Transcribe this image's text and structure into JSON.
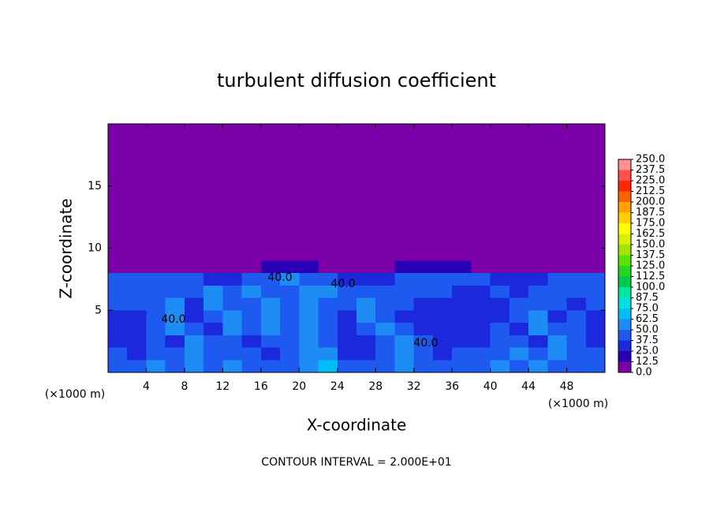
{
  "chart_data": {
    "type": "heatmap",
    "title": "turbulent diffusion coefficient",
    "x_label": "X-coordinate",
    "y_label": "Z-coordinate",
    "x_unit_label": "(×1000 m)",
    "footer": "CONTOUR INTERVAL = 2.000E+01",
    "contour_label": "40.0",
    "xlim": [
      0,
      52
    ],
    "ylim": [
      0,
      20
    ],
    "xticks": [
      4,
      8,
      12,
      16,
      20,
      24,
      28,
      32,
      36,
      40,
      44,
      48
    ],
    "yticks": [
      5,
      10,
      15
    ],
    "x_edges": [
      0,
      2,
      4,
      6,
      8,
      10,
      12,
      14,
      16,
      18,
      20,
      22,
      24,
      26,
      28,
      30,
      32,
      34,
      36,
      38,
      40,
      42,
      44,
      46,
      48,
      50,
      52
    ],
    "y_edges": [
      0,
      1,
      2,
      3,
      4,
      5,
      6,
      7,
      8,
      9,
      10,
      20
    ],
    "z": [
      [
        45,
        45,
        60,
        45,
        60,
        45,
        60,
        45,
        45,
        45,
        60,
        70,
        45,
        45,
        45,
        60,
        45,
        45,
        45,
        45,
        60,
        45,
        60,
        45,
        45,
        45
      ],
      [
        45,
        30,
        45,
        45,
        60,
        45,
        45,
        45,
        30,
        45,
        60,
        60,
        30,
        30,
        45,
        60,
        45,
        30,
        45,
        45,
        45,
        60,
        45,
        60,
        45,
        45
      ],
      [
        30,
        30,
        45,
        30,
        60,
        45,
        45,
        30,
        45,
        45,
        60,
        45,
        30,
        30,
        45,
        60,
        45,
        30,
        30,
        30,
        45,
        45,
        30,
        60,
        45,
        30
      ],
      [
        30,
        30,
        45,
        60,
        45,
        30,
        60,
        45,
        60,
        45,
        60,
        45,
        30,
        45,
        60,
        45,
        30,
        30,
        30,
        30,
        45,
        30,
        60,
        45,
        45,
        30
      ],
      [
        30,
        30,
        45,
        60,
        30,
        45,
        60,
        45,
        60,
        45,
        60,
        45,
        30,
        60,
        45,
        30,
        30,
        30,
        30,
        30,
        30,
        45,
        60,
        30,
        45,
        30
      ],
      [
        45,
        45,
        45,
        60,
        30,
        60,
        45,
        45,
        60,
        45,
        60,
        45,
        45,
        60,
        45,
        45,
        30,
        30,
        30,
        30,
        30,
        45,
        45,
        45,
        30,
        45
      ],
      [
        45,
        45,
        45,
        45,
        45,
        60,
        45,
        60,
        45,
        45,
        60,
        60,
        45,
        45,
        45,
        45,
        45,
        45,
        30,
        30,
        45,
        30,
        45,
        45,
        45,
        45
      ],
      [
        45,
        45,
        45,
        45,
        45,
        30,
        30,
        45,
        45,
        60,
        45,
        45,
        30,
        30,
        30,
        45,
        45,
        45,
        45,
        45,
        30,
        30,
        30,
        45,
        45,
        45
      ],
      [
        0,
        0,
        0,
        0,
        0,
        0,
        0,
        0,
        20,
        20,
        20,
        0,
        0,
        0,
        0,
        20,
        20,
        20,
        20,
        0,
        0,
        0,
        0,
        0,
        0,
        0
      ],
      [
        0,
        0,
        0,
        0,
        0,
        0,
        0,
        0,
        0,
        0,
        0,
        0,
        0,
        0,
        0,
        0,
        0,
        0,
        0,
        0,
        0,
        0,
        0,
        0,
        0,
        0
      ],
      [
        0,
        0,
        0,
        0,
        0,
        0,
        0,
        0,
        0,
        0,
        0,
        0,
        0,
        0,
        0,
        0,
        0,
        0,
        0,
        0,
        0,
        0,
        0,
        0,
        0,
        0
      ]
    ],
    "levels": [
      {
        "value": 0,
        "label": "0.0"
      },
      12.5,
      {
        "value": 25,
        "label": "25.0"
      },
      37.5,
      {
        "value": 50,
        "label": "50.0"
      },
      62.5,
      {
        "value": 75,
        "label": "75.0"
      },
      87.5,
      {
        "value": 100,
        "label": "100.0"
      },
      112.5,
      {
        "value": 125,
        "label": "125.0"
      },
      137.5,
      {
        "value": 150,
        "label": "150.0"
      },
      162.5,
      {
        "value": 175,
        "label": "175.0"
      },
      187.5,
      {
        "value": 200,
        "label": "200.0"
      },
      212.5,
      {
        "value": 225,
        "label": "225.0"
      },
      237.5,
      {
        "value": 250,
        "label": "250.0"
      }
    ],
    "colors": [
      "#7a00a8",
      "#2a00b4",
      "#1c28dc",
      "#1e5af0",
      "#1e8cf5",
      "#00bef5",
      "#00e0e0",
      "#00e6a0",
      "#00c850",
      "#20d820",
      "#58e600",
      "#a0e600",
      "#d8f000",
      "#ffff00",
      "#ffd000",
      "#ffa000",
      "#ff6400",
      "#ff2800",
      "#ff5050",
      "#ff9090"
    ]
  }
}
